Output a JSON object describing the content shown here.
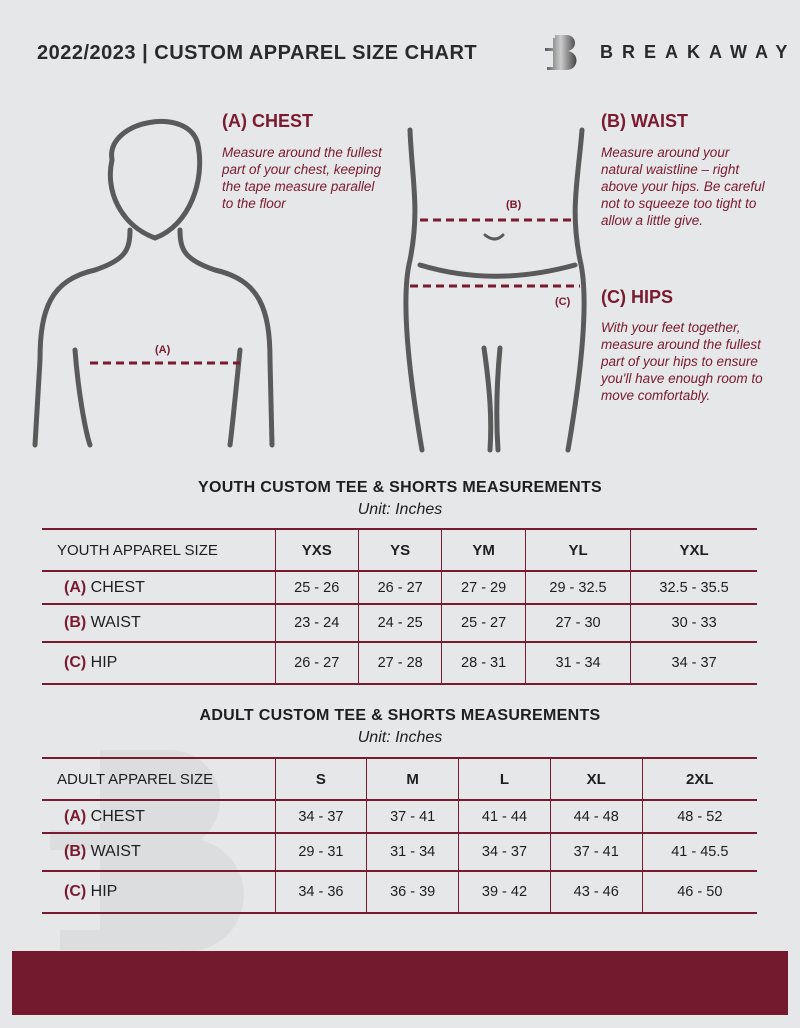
{
  "header": {
    "title": "2022/2023 | CUSTOM APPAREL SIZE CHART",
    "brand": "BREAKAWAY"
  },
  "measures": {
    "chest": {
      "label": "(A) CHEST",
      "text": "Measure around the fullest part of your chest, keeping the tape measure parallel to the floor",
      "marker": "(A)"
    },
    "waist": {
      "label": "(B) WAIST",
      "text": "Measure around your natural waistline – right above your hips. Be careful not to squeeze too tight to allow a little give.",
      "marker": "(B)"
    },
    "hips": {
      "label": "(C) HIPS",
      "text": "With your feet together, measure around the fullest part of your hips to ensure you'll have enough room to move comfortably.",
      "marker": "(C)"
    }
  },
  "youth": {
    "title": "YOUTH CUSTOM TEE & SHORTS MEASUREMENTS",
    "unit": "Unit: Inches",
    "header": "YOUTH APPAREL SIZE",
    "sizes": [
      "YXS",
      "YS",
      "YM",
      "YL",
      "YXL"
    ],
    "rows": [
      {
        "tag": "(A)",
        "name": "CHEST",
        "values": [
          "25 - 26",
          "26 - 27",
          "27 - 29",
          "29 - 32.5",
          "32.5 - 35.5"
        ]
      },
      {
        "tag": "(B)",
        "name": "WAIST",
        "values": [
          "23 - 24",
          "24 - 25",
          "25 - 27",
          "27 - 30",
          "30 - 33"
        ]
      },
      {
        "tag": "(C)",
        "name": "HIP",
        "values": [
          "26 - 27",
          "27 - 28",
          "28 - 31",
          "31 - 34",
          "34 - 37"
        ]
      }
    ]
  },
  "adult": {
    "title": "ADULT CUSTOM TEE & SHORTS MEASUREMENTS",
    "unit": "Unit: Inches",
    "header": "ADULT APPAREL SIZE",
    "sizes": [
      "S",
      "M",
      "L",
      "XL",
      "2XL"
    ],
    "rows": [
      {
        "tag": "(A)",
        "name": "CHEST",
        "values": [
          "34 - 37",
          "37 - 41",
          "41 - 44",
          "44 - 48",
          "48 - 52"
        ]
      },
      {
        "tag": "(B)",
        "name": "WAIST",
        "values": [
          "29 - 31",
          "31 - 34",
          "34 - 37",
          "37 - 41",
          "41 - 45.5"
        ]
      },
      {
        "tag": "(C)",
        "name": "HIP",
        "values": [
          "34 - 36",
          "36 - 39",
          "39 - 42",
          "43 - 46",
          "46 - 50"
        ]
      }
    ]
  },
  "colors": {
    "accent": "#7a1a30",
    "background": "#e6e7e9",
    "footer": "#731a2e"
  }
}
